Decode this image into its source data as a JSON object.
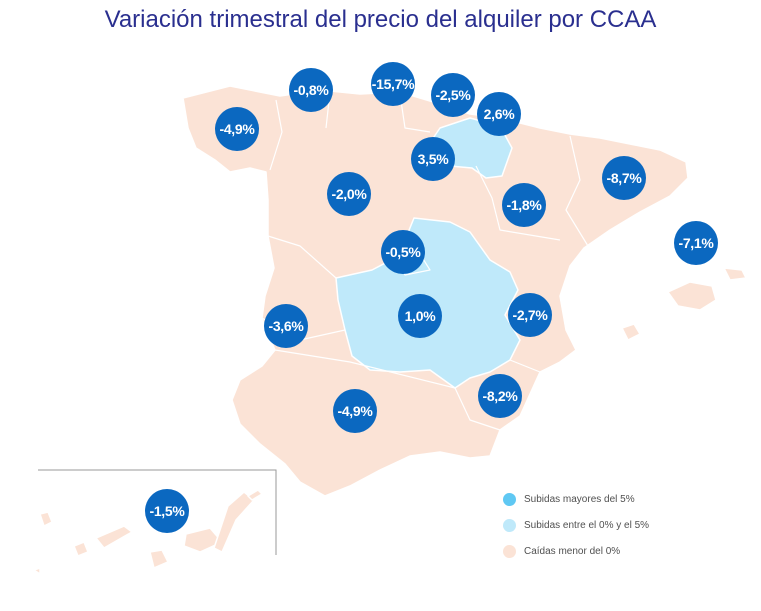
{
  "title": "Variación trimestral del precio del alquiler por CCAA",
  "colors": {
    "rise_gt5": "#5fc8f3",
    "rise_0_5": "#bfe9fa",
    "fall": "#fbe3d6",
    "bubble": "#0b68c0",
    "title": "#2a2f8f"
  },
  "regions": [
    {
      "name": "Galicia",
      "value": "-4,9%",
      "category": "fall"
    },
    {
      "name": "Asturias",
      "value": "-0,8%",
      "category": "fall"
    },
    {
      "name": "Cantabria",
      "value": "-15,7%",
      "category": "fall"
    },
    {
      "name": "País Vasco",
      "value": "-2,5%",
      "category": "fall"
    },
    {
      "name": "Navarra",
      "value": "2,6%",
      "category": "rise_0_5"
    },
    {
      "name": "La Rioja",
      "value": "3,5%",
      "category": "rise_0_5"
    },
    {
      "name": "Cataluña",
      "value": "-8,7%",
      "category": "fall"
    },
    {
      "name": "Castilla y León",
      "value": "-2,0%",
      "category": "fall"
    },
    {
      "name": "Aragón",
      "value": "-1,8%",
      "category": "fall"
    },
    {
      "name": "Baleares",
      "value": "-7,1%",
      "category": "fall"
    },
    {
      "name": "Madrid",
      "value": "-0,5%",
      "category": "fall"
    },
    {
      "name": "Extremadura",
      "value": "-3,6%",
      "category": "fall"
    },
    {
      "name": "Castilla-La Mancha",
      "value": "1,0%",
      "category": "rise_0_5"
    },
    {
      "name": "Comunidad Valenciana",
      "value": "-2,7%",
      "category": "fall"
    },
    {
      "name": "Murcia",
      "value": "-8,2%",
      "category": "fall"
    },
    {
      "name": "Andalucía",
      "value": "-4,9%",
      "category": "fall"
    },
    {
      "name": "Canarias",
      "value": "-1,5%",
      "category": "fall"
    }
  ],
  "legend": [
    {
      "label": "Subidas mayores del 5%",
      "color": "#5fc8f3"
    },
    {
      "label": "Subidas entre el 0% y el 5%",
      "color": "#bfe9fa"
    },
    {
      "label": "Caídas menor del 0%",
      "color": "#fbe3d6"
    }
  ]
}
